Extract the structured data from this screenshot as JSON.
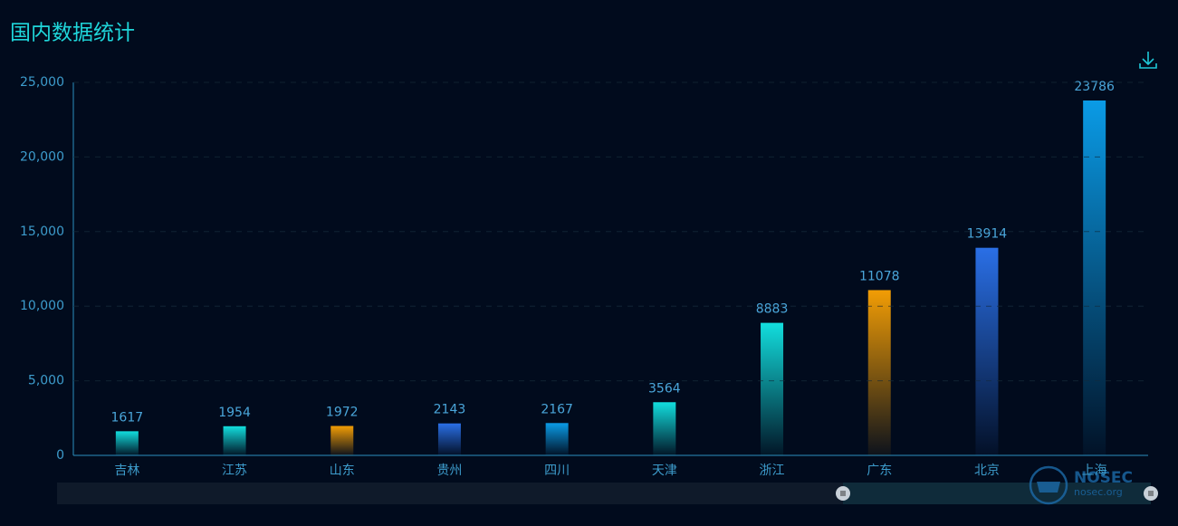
{
  "chart_data": {
    "type": "bar",
    "title": "国内数据统计",
    "categories": [
      "吉林",
      "江苏",
      "山东",
      "贵州",
      "四川",
      "天津",
      "浙江",
      "广东",
      "北京",
      "上海"
    ],
    "values": [
      1617,
      1954,
      1972,
      2143,
      2167,
      3564,
      8883,
      11078,
      13914,
      23786
    ],
    "colors": [
      "#12dede",
      "#12dede",
      "#f29d05",
      "#2a6fe6",
      "#0a9be6",
      "#12dede",
      "#12dede",
      "#f29d05",
      "#2a6fe6",
      "#0a9be6"
    ],
    "ylim": [
      0,
      25000
    ],
    "yticks": [
      0,
      {
        "value": 5000,
        "label": "5,000"
      },
      {
        "value": 10000,
        "label": "10,000"
      },
      {
        "value": 15000,
        "label": "15,000"
      },
      {
        "value": 20000,
        "label": "20,000"
      },
      {
        "value": 25000,
        "label": "25,000"
      }
    ],
    "grid": true,
    "watermark": {
      "title": "NOSEC",
      "subtitle": "nosec.org"
    }
  }
}
